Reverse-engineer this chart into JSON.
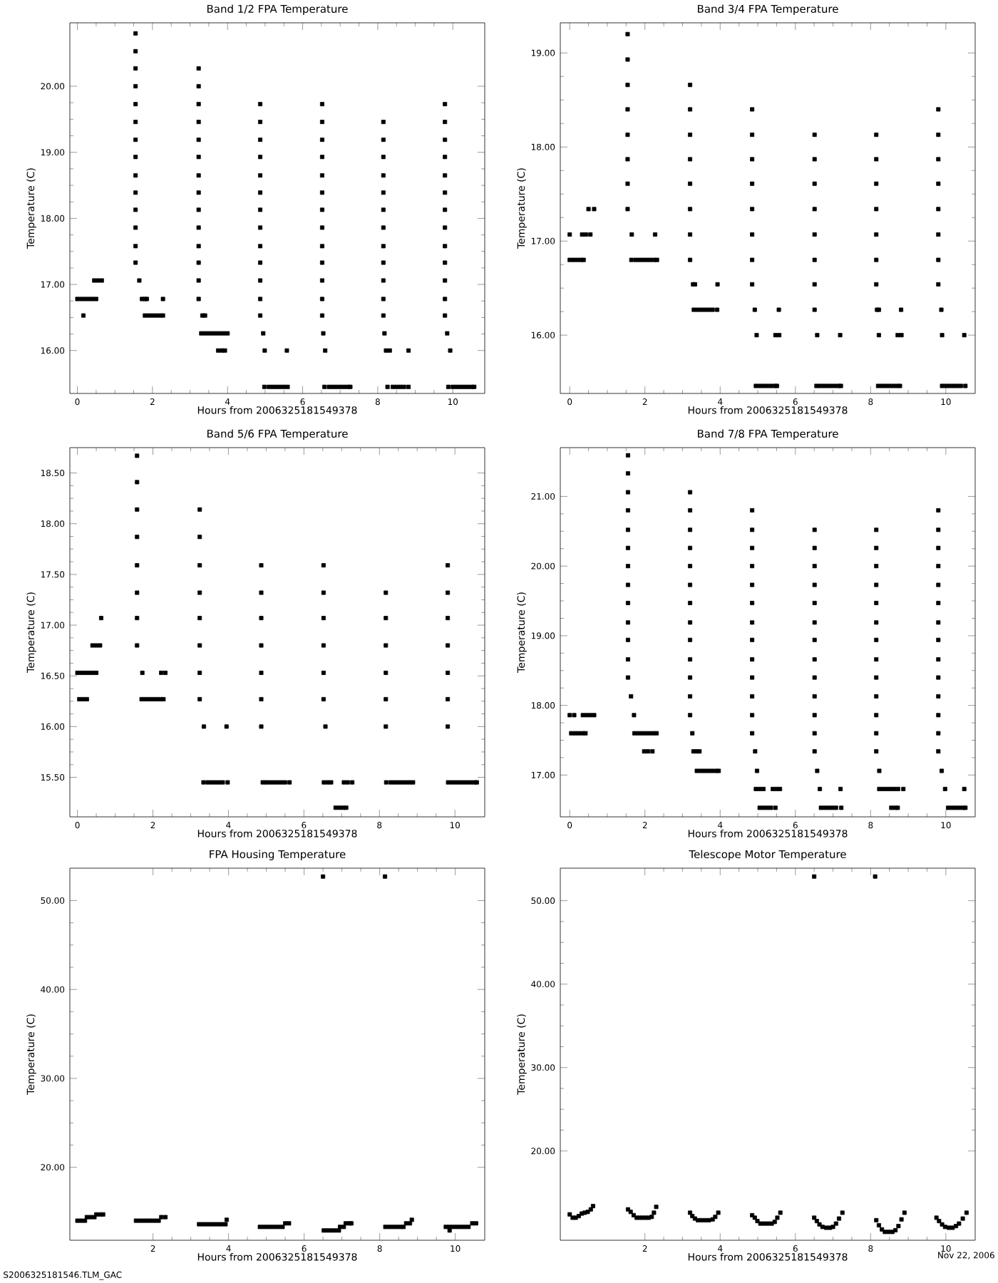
{
  "chart_data": [
    {
      "type": "scatter",
      "title": "Band 1/2 FPA Temperature",
      "xlabel": "Hours from 2006325181549378",
      "ylabel": "Temperature (C)",
      "color": "#000000",
      "marker": "square",
      "xlim": [
        -0.2,
        10.85
      ],
      "ylim": [
        15.35,
        20.96
      ],
      "xticks": [
        0,
        2,
        4,
        6,
        8,
        10
      ],
      "yticks": [
        {
          "value": 16,
          "label": "16.00"
        },
        {
          "value": 17,
          "label": "17.00"
        },
        {
          "value": 18,
          "label": "18.00"
        },
        {
          "value": 19,
          "label": "19.00"
        },
        {
          "value": 20,
          "label": "20.00"
        }
      ],
      "series": [
        {
          "x": [
            0,
            0.1,
            0.2,
            0.3,
            0.4,
            0.5,
            0.16,
            0.45,
            0.55,
            0.65
          ],
          "values": [
            16.78,
            16.78,
            16.78,
            16.78,
            16.78,
            16.78,
            16.53,
            17.06,
            17.06,
            17.06
          ]
        },
        {
          "x": [
            1.55,
            1.55,
            1.55,
            1.55,
            1.55,
            1.55,
            1.55,
            1.55,
            1.55,
            1.55,
            1.55,
            1.55,
            1.55,
            1.55,
            1.65,
            1.72,
            1.8,
            1.85,
            1.8,
            1.9,
            2.0,
            2.1,
            2.2,
            2.28,
            2.28
          ],
          "values": [
            20.8,
            20.53,
            20.27,
            20.0,
            19.73,
            19.46,
            19.19,
            18.93,
            18.65,
            18.39,
            18.13,
            17.86,
            17.58,
            17.33,
            17.06,
            16.78,
            16.78,
            16.78,
            16.53,
            16.53,
            16.53,
            16.53,
            16.53,
            16.53,
            16.78
          ]
        },
        {
          "x": [
            3.23,
            3.23,
            3.23,
            3.23,
            3.23,
            3.23,
            3.23,
            3.23,
            3.23,
            3.23,
            3.23,
            3.23,
            3.23,
            3.23,
            3.33,
            3.4,
            3.3,
            3.4,
            3.5,
            3.6,
            3.7,
            3.8,
            3.9,
            4.0,
            3.75,
            3.85,
            3.93
          ],
          "values": [
            20.27,
            20.0,
            19.73,
            19.46,
            19.19,
            18.93,
            18.65,
            18.39,
            18.13,
            17.86,
            17.58,
            17.33,
            17.06,
            16.78,
            16.53,
            16.53,
            16.26,
            16.26,
            16.26,
            16.26,
            16.26,
            16.26,
            16.26,
            16.26,
            16.0,
            16.0,
            16.0
          ]
        },
        {
          "x": [
            4.87,
            4.87,
            4.87,
            4.87,
            4.87,
            4.87,
            4.87,
            4.87,
            4.87,
            4.87,
            4.87,
            4.87,
            4.87,
            4.95,
            4.99,
            5.58,
            4.98,
            5.1,
            5.2,
            5.3,
            5.4,
            5.5,
            5.6
          ],
          "values": [
            19.73,
            19.46,
            19.19,
            18.93,
            18.65,
            18.39,
            18.13,
            17.86,
            17.58,
            17.33,
            17.06,
            16.78,
            16.53,
            16.26,
            16.0,
            16.0,
            15.45,
            15.45,
            15.45,
            15.45,
            15.45,
            15.45,
            15.45
          ]
        },
        {
          "x": [
            6.52,
            6.52,
            6.52,
            6.52,
            6.52,
            6.52,
            6.52,
            6.52,
            6.52,
            6.52,
            6.52,
            6.52,
            6.52,
            6.55,
            6.6,
            6.58,
            6.7,
            6.8,
            6.9,
            7.0,
            7.1,
            7.2,
            7.27
          ],
          "values": [
            19.73,
            19.46,
            19.19,
            18.93,
            18.65,
            18.39,
            18.13,
            17.86,
            17.58,
            17.33,
            17.06,
            16.78,
            16.53,
            16.26,
            16.0,
            15.45,
            15.45,
            15.45,
            15.45,
            15.45,
            15.45,
            15.45,
            15.45
          ]
        },
        {
          "x": [
            8.15,
            8.15,
            8.15,
            8.15,
            8.15,
            8.15,
            8.15,
            8.15,
            8.15,
            8.15,
            8.15,
            8.15,
            8.18,
            8.22,
            8.32,
            8.82,
            8.26,
            8.4,
            8.5,
            8.6,
            8.7,
            8.82
          ],
          "values": [
            19.46,
            19.19,
            18.93,
            18.65,
            18.39,
            18.13,
            17.86,
            17.58,
            17.33,
            17.06,
            16.78,
            16.53,
            16.26,
            16.0,
            16.0,
            16.0,
            15.45,
            15.45,
            15.45,
            15.45,
            15.45,
            15.45
          ]
        },
        {
          "x": [
            9.79,
            9.79,
            9.79,
            9.79,
            9.79,
            9.79,
            9.79,
            9.79,
            9.79,
            9.79,
            9.79,
            9.79,
            9.79,
            9.85,
            9.93,
            9.88,
            10.0,
            10.1,
            10.2,
            10.3,
            10.4,
            10.5,
            10.57
          ],
          "values": [
            19.73,
            19.46,
            19.19,
            18.93,
            18.65,
            18.39,
            18.13,
            17.86,
            17.58,
            17.33,
            17.06,
            16.78,
            16.53,
            16.26,
            16.0,
            15.45,
            15.45,
            15.45,
            15.45,
            15.45,
            15.45,
            15.45,
            15.45
          ]
        }
      ]
    },
    {
      "type": "scatter",
      "title": "Band 3/4 FPA Temperature",
      "xlabel": "Hours from 2006325181549378",
      "ylabel": "Temperature (C)",
      "color": "#000000",
      "marker": "square",
      "xlim": [
        -0.25,
        10.78
      ],
      "ylim": [
        15.38,
        19.32
      ],
      "xticks": [
        0,
        2,
        4,
        6,
        8,
        10
      ],
      "yticks": [
        {
          "value": 16,
          "label": "16.00"
        },
        {
          "value": 17,
          "label": "17.00"
        },
        {
          "value": 18,
          "label": "18.00"
        },
        {
          "value": 19,
          "label": "19.00"
        }
      ],
      "series": [
        {
          "x": [
            0,
            0,
            0.1,
            0.2,
            0.3,
            0.37,
            0.33,
            0.43,
            0.55,
            0.5,
            0.65
          ],
          "values": [
            17.07,
            16.8,
            16.8,
            16.8,
            16.8,
            16.8,
            17.07,
            17.07,
            17.07,
            17.34,
            17.34
          ]
        },
        {
          "x": [
            1.54,
            1.54,
            1.54,
            1.54,
            1.54,
            1.54,
            1.54,
            1.54,
            1.65,
            1.64,
            1.75,
            1.85,
            1.95,
            2.05,
            2.15,
            2.25,
            2.32,
            2.27
          ],
          "values": [
            19.2,
            18.93,
            18.66,
            18.4,
            18.13,
            17.87,
            17.61,
            17.34,
            17.07,
            16.8,
            16.8,
            16.8,
            16.8,
            16.8,
            16.8,
            16.8,
            16.8,
            17.07
          ]
        },
        {
          "x": [
            3.2,
            3.2,
            3.2,
            3.2,
            3.2,
            3.2,
            3.2,
            3.2,
            3.28,
            3.33,
            3.3,
            3.4,
            3.5,
            3.6,
            3.7,
            3.8,
            3.92,
            3.93
          ],
          "values": [
            18.66,
            18.4,
            18.13,
            17.87,
            17.61,
            17.34,
            17.07,
            16.8,
            16.54,
            16.54,
            16.27,
            16.27,
            16.27,
            16.27,
            16.27,
            16.27,
            16.27,
            16.54
          ]
        },
        {
          "x": [
            4.85,
            4.85,
            4.85,
            4.85,
            4.85,
            4.85,
            4.85,
            4.85,
            4.92,
            4.97,
            5.56,
            5.47,
            5.57,
            4.95,
            5.05,
            5.15,
            5.25,
            5.35,
            5.45,
            5.51
          ],
          "values": [
            18.4,
            18.13,
            17.87,
            17.61,
            17.34,
            17.07,
            16.8,
            16.54,
            16.27,
            16.0,
            16.27,
            16.0,
            16.0,
            15.46,
            15.46,
            15.46,
            15.46,
            15.46,
            15.46,
            15.46
          ]
        },
        {
          "x": [
            6.51,
            6.51,
            6.51,
            6.51,
            6.51,
            6.51,
            6.51,
            6.51,
            6.58,
            7.19,
            6.56,
            6.65,
            6.75,
            6.85,
            6.95,
            7.05,
            7.15,
            7.21
          ],
          "values": [
            18.13,
            17.87,
            17.61,
            17.34,
            17.07,
            16.8,
            16.54,
            16.27,
            16.0,
            16.0,
            15.46,
            15.46,
            15.46,
            15.46,
            15.46,
            15.46,
            15.46,
            15.46
          ]
        },
        {
          "x": [
            8.15,
            8.15,
            8.15,
            8.15,
            8.15,
            8.15,
            8.15,
            8.17,
            8.22,
            8.22,
            8.81,
            8.72,
            8.82,
            8.2,
            8.3,
            8.4,
            8.5,
            8.6,
            8.7,
            8.78
          ],
          "values": [
            18.13,
            17.87,
            17.61,
            17.34,
            17.07,
            16.8,
            16.54,
            16.27,
            16.27,
            16.0,
            16.27,
            16.0,
            16.0,
            15.46,
            15.46,
            15.46,
            15.46,
            15.46,
            15.46,
            15.46
          ]
        },
        {
          "x": [
            9.8,
            9.8,
            9.8,
            9.8,
            9.8,
            9.8,
            9.8,
            9.8,
            9.88,
            9.9,
            10.49,
            9.9,
            10.0,
            10.1,
            10.2,
            10.3,
            10.4,
            10.52
          ],
          "values": [
            18.4,
            18.13,
            17.87,
            17.61,
            17.34,
            17.07,
            16.8,
            16.54,
            16.27,
            16.0,
            16.0,
            15.46,
            15.46,
            15.46,
            15.46,
            15.46,
            15.46,
            15.46
          ]
        }
      ]
    },
    {
      "type": "scatter",
      "title": "Band 5/6 FPA Temperature",
      "xlabel": "Hours from 2006325181549378",
      "ylabel": "Temperature (C)",
      "color": "#000000",
      "marker": "square",
      "xlim": [
        -0.2,
        10.79
      ],
      "ylim": [
        15.11,
        18.75
      ],
      "xticks": [
        0,
        2,
        4,
        6,
        8,
        10
      ],
      "yticks": [
        {
          "value": 15.5,
          "label": "15.50"
        },
        {
          "value": 16,
          "label": "16.00"
        },
        {
          "value": 16.5,
          "label": "16.50"
        },
        {
          "value": 17,
          "label": "17.00"
        },
        {
          "value": 17.5,
          "label": "17.50"
        },
        {
          "value": 18,
          "label": "18.00"
        },
        {
          "value": 18.5,
          "label": "18.50"
        }
      ],
      "series": [
        {
          "x": [
            0,
            0.1,
            0.2,
            0.3,
            0.4,
            0.5,
            0.05,
            0.15,
            0.25,
            0.4,
            0.5,
            0.6,
            0.63
          ],
          "values": [
            16.53,
            16.53,
            16.53,
            16.53,
            16.53,
            16.53,
            16.27,
            16.27,
            16.27,
            16.8,
            16.8,
            16.8,
            17.07
          ]
        },
        {
          "x": [
            1.58,
            1.58,
            1.58,
            1.58,
            1.58,
            1.58,
            1.58,
            1.58,
            1.72,
            1.7,
            1.8,
            1.9,
            2.0,
            2.1,
            2.2,
            2.28,
            2.22,
            2.33
          ],
          "values": [
            18.67,
            18.41,
            18.14,
            17.87,
            17.59,
            17.32,
            17.07,
            16.8,
            16.53,
            16.27,
            16.27,
            16.27,
            16.27,
            16.27,
            16.27,
            16.27,
            16.53,
            16.53
          ]
        },
        {
          "x": [
            3.24,
            3.24,
            3.24,
            3.24,
            3.24,
            3.24,
            3.24,
            3.24,
            3.35,
            3.34,
            3.45,
            3.55,
            3.65,
            3.75,
            3.85,
            3.98,
            3.95
          ],
          "values": [
            18.14,
            17.87,
            17.59,
            17.32,
            17.07,
            16.8,
            16.53,
            16.27,
            16.0,
            15.45,
            15.45,
            15.45,
            15.45,
            15.45,
            15.45,
            15.45,
            16.0
          ]
        },
        {
          "x": [
            4.87,
            4.87,
            4.87,
            4.87,
            4.87,
            4.87,
            4.87,
            4.91,
            5.0,
            5.1,
            5.2,
            5.3,
            5.4,
            5.5,
            5.62
          ],
          "values": [
            17.59,
            17.32,
            17.07,
            16.8,
            16.53,
            16.27,
            16.0,
            15.45,
            15.45,
            15.45,
            15.45,
            15.45,
            15.45,
            15.45,
            15.45
          ]
        },
        {
          "x": [
            6.52,
            6.52,
            6.52,
            6.52,
            6.52,
            6.52,
            6.57,
            6.53,
            6.63,
            6.72,
            7.06,
            7.16,
            7.28,
            6.84,
            6.94,
            7.04,
            7.12
          ],
          "values": [
            17.59,
            17.32,
            17.07,
            16.8,
            16.53,
            16.27,
            16.0,
            15.45,
            15.45,
            15.45,
            15.45,
            15.45,
            15.45,
            15.2,
            15.2,
            15.2,
            15.2
          ]
        },
        {
          "x": [
            8.17,
            8.17,
            8.17,
            8.17,
            8.17,
            8.17,
            8.18,
            8.3,
            8.4,
            8.5,
            8.6,
            8.7,
            8.8,
            8.89
          ],
          "values": [
            17.32,
            17.07,
            16.8,
            16.53,
            16.27,
            16.0,
            15.45,
            15.45,
            15.45,
            15.45,
            15.45,
            15.45,
            15.45,
            15.45
          ]
        },
        {
          "x": [
            9.81,
            9.81,
            9.81,
            9.81,
            9.81,
            9.81,
            9.81,
            9.82,
            9.92,
            10.02,
            10.12,
            10.22,
            10.32,
            10.42,
            10.52,
            10.58
          ],
          "values": [
            17.59,
            17.32,
            17.07,
            16.8,
            16.53,
            16.27,
            16.0,
            15.45,
            15.45,
            15.45,
            15.45,
            15.45,
            15.45,
            15.45,
            15.45,
            15.45
          ]
        }
      ]
    },
    {
      "type": "scatter",
      "title": "Band 7/8 FPA Temperature",
      "xlabel": "Hours from 2006325181549378",
      "ylabel": "Temperature (C)",
      "color": "#000000",
      "marker": "square",
      "xlim": [
        -0.25,
        10.78
      ],
      "ylim": [
        16.4,
        21.7
      ],
      "xticks": [
        0,
        2,
        4,
        6,
        8,
        10
      ],
      "yticks": [
        {
          "value": 17,
          "label": "17.00"
        },
        {
          "value": 18,
          "label": "18.00"
        },
        {
          "value": 19,
          "label": "19.00"
        },
        {
          "value": 20,
          "label": "20.00"
        },
        {
          "value": 21,
          "label": "21.00"
        }
      ],
      "series": [
        {
          "x": [
            0,
            0.12,
            0.35,
            0.45,
            0.55,
            0.65,
            0.04,
            0.14,
            0.24,
            0.34,
            0.42
          ],
          "values": [
            17.86,
            17.86,
            17.86,
            17.86,
            17.86,
            17.86,
            17.6,
            17.6,
            17.6,
            17.6,
            17.6
          ]
        },
        {
          "x": [
            1.55,
            1.55,
            1.55,
            1.55,
            1.55,
            1.55,
            1.55,
            1.55,
            1.55,
            1.55,
            1.55,
            1.55,
            1.55,
            1.63,
            1.71,
            1.72,
            1.82,
            1.92,
            2.02,
            2.12,
            2.22,
            2.31,
            1.98,
            2.08,
            2.2
          ],
          "values": [
            21.59,
            21.33,
            21.06,
            20.8,
            20.52,
            20.26,
            20.0,
            19.73,
            19.47,
            19.19,
            18.94,
            18.66,
            18.4,
            18.13,
            17.86,
            17.6,
            17.6,
            17.6,
            17.6,
            17.6,
            17.6,
            17.6,
            17.34,
            17.34,
            17.34
          ]
        },
        {
          "x": [
            3.2,
            3.2,
            3.2,
            3.2,
            3.2,
            3.2,
            3.2,
            3.2,
            3.2,
            3.2,
            3.2,
            3.2,
            3.2,
            3.26,
            3.29,
            3.38,
            3.45,
            3.38,
            3.48,
            3.58,
            3.68,
            3.78,
            3.88,
            3.96
          ],
          "values": [
            21.06,
            20.8,
            20.52,
            20.26,
            20.0,
            19.73,
            19.47,
            19.19,
            18.94,
            18.66,
            18.4,
            18.13,
            17.86,
            17.6,
            17.34,
            17.34,
            17.34,
            17.06,
            17.06,
            17.06,
            17.06,
            17.06,
            17.06,
            17.06
          ]
        },
        {
          "x": [
            4.85,
            4.85,
            4.85,
            4.85,
            4.85,
            4.85,
            4.85,
            4.85,
            4.85,
            4.85,
            4.85,
            4.85,
            4.85,
            4.93,
            4.98,
            4.95,
            5.05,
            5.15,
            5.4,
            5.5,
            5.59,
            5.05,
            5.15,
            5.25,
            5.35,
            5.47
          ],
          "values": [
            20.8,
            20.52,
            20.26,
            20.0,
            19.73,
            19.47,
            19.19,
            18.94,
            18.66,
            18.4,
            18.13,
            17.86,
            17.6,
            17.34,
            17.06,
            16.8,
            16.8,
            16.8,
            16.8,
            16.8,
            16.8,
            16.53,
            16.53,
            16.53,
            16.53,
            16.53
          ]
        },
        {
          "x": [
            6.51,
            6.51,
            6.51,
            6.51,
            6.51,
            6.51,
            6.51,
            6.51,
            6.51,
            6.51,
            6.51,
            6.51,
            6.51,
            6.58,
            6.65,
            7.2,
            6.68,
            6.78,
            6.88,
            6.98,
            7.08,
            7.22
          ],
          "values": [
            20.52,
            20.26,
            20.0,
            19.73,
            19.47,
            19.19,
            18.94,
            18.66,
            18.4,
            18.13,
            17.86,
            17.6,
            17.34,
            17.06,
            16.8,
            16.8,
            16.53,
            16.53,
            16.53,
            16.53,
            16.53,
            16.53
          ]
        },
        {
          "x": [
            8.15,
            8.15,
            8.15,
            8.15,
            8.15,
            8.15,
            8.15,
            8.15,
            8.15,
            8.15,
            8.15,
            8.15,
            8.15,
            8.23,
            8.23,
            8.33,
            8.43,
            8.53,
            8.63,
            8.73,
            8.87,
            8.55,
            8.65,
            8.72
          ],
          "values": [
            20.52,
            20.26,
            20.0,
            19.73,
            19.47,
            19.19,
            18.94,
            18.66,
            18.4,
            18.13,
            17.86,
            17.6,
            17.34,
            17.06,
            16.8,
            16.8,
            16.8,
            16.8,
            16.8,
            16.8,
            16.8,
            16.53,
            16.53,
            16.53
          ]
        },
        {
          "x": [
            9.8,
            9.8,
            9.8,
            9.8,
            9.8,
            9.8,
            9.8,
            9.8,
            9.8,
            9.8,
            9.8,
            9.8,
            9.8,
            9.8,
            9.89,
            9.98,
            10.49,
            10.06,
            10.16,
            10.26,
            10.36,
            10.46,
            10.52
          ],
          "values": [
            20.8,
            20.52,
            20.26,
            20.0,
            19.73,
            19.47,
            19.19,
            18.94,
            18.66,
            18.4,
            18.13,
            17.86,
            17.6,
            17.34,
            17.06,
            16.8,
            16.8,
            16.53,
            16.53,
            16.53,
            16.53,
            16.53,
            16.53
          ]
        }
      ]
    },
    {
      "type": "scatter",
      "title": "FPA Housing Temperature",
      "xlabel": "Hours from 2006325181549378",
      "ylabel": "Temperature (C)",
      "color": "#000000",
      "marker": "square",
      "xlim": [
        -0.2,
        10.78
      ],
      "ylim": [
        11.8,
        53.64
      ],
      "xticks": [
        2,
        4,
        6,
        8,
        10
      ],
      "yticks": [
        {
          "value": 20,
          "label": "20.00"
        },
        {
          "value": 30,
          "label": "30.00"
        },
        {
          "value": 40,
          "label": "40.00"
        },
        {
          "value": 50,
          "label": "50.00"
        }
      ],
      "annotations": [
        "S2006325181546.TLM_GAC"
      ],
      "series": [
        {
          "x": [
            0,
            0.1,
            0.2,
            0.25,
            0.35,
            0.45,
            0.5,
            0.6,
            0.68
          ],
          "values": [
            14.0,
            14.0,
            14.0,
            14.4,
            14.4,
            14.4,
            14.7,
            14.7,
            14.7
          ]
        },
        {
          "x": [
            1.55,
            1.65,
            1.75,
            1.85,
            1.95,
            2.05,
            2.15,
            2.22,
            2.33
          ],
          "values": [
            14.0,
            14.0,
            14.0,
            14.0,
            14.0,
            14.0,
            14.0,
            14.4,
            14.4
          ]
        },
        {
          "x": [
            3.22,
            3.32,
            3.42,
            3.52,
            3.62,
            3.72,
            3.82,
            3.92,
            3.95
          ],
          "values": [
            13.6,
            13.6,
            13.6,
            13.6,
            13.6,
            13.6,
            13.6,
            13.6,
            14.1
          ]
        },
        {
          "x": [
            4.83,
            4.93,
            5.03,
            5.13,
            5.23,
            5.33,
            5.43,
            5.5,
            5.6
          ],
          "values": [
            13.3,
            13.3,
            13.3,
            13.3,
            13.3,
            13.3,
            13.3,
            13.7,
            13.7
          ]
        },
        {
          "x": [
            6.52,
            6.62,
            6.72,
            6.82,
            6.92,
            6.95,
            7.05,
            7.1,
            7.2,
            7.25,
            6.5
          ],
          "values": [
            12.9,
            12.9,
            12.9,
            12.9,
            12.9,
            13.3,
            13.3,
            13.7,
            13.7,
            13.7,
            52.7
          ]
        },
        {
          "x": [
            8.15,
            8.25,
            8.35,
            8.45,
            8.55,
            8.63,
            8.7,
            8.8,
            8.85,
            8.14
          ],
          "values": [
            13.3,
            13.3,
            13.3,
            13.3,
            13.3,
            13.3,
            13.7,
            13.7,
            14.1,
            52.7
          ]
        },
        {
          "x": [
            9.75,
            9.85,
            9.95,
            10.05,
            10.15,
            10.25,
            10.35,
            9.85,
            10.45,
            10.55
          ],
          "values": [
            13.3,
            13.3,
            13.3,
            13.3,
            13.3,
            13.3,
            13.3,
            12.9,
            13.7,
            13.7
          ]
        }
      ]
    },
    {
      "type": "scatter",
      "title": "Telescope Motor Temperature",
      "xlabel": "Hours from 2006325181549378",
      "ylabel": "Temperature (C)",
      "color": "#000000",
      "marker": "square",
      "xlim": [
        -0.25,
        10.78
      ],
      "ylim": [
        9.3,
        53.9
      ],
      "xticks": [
        2,
        4,
        6,
        8,
        10
      ],
      "yticks": [
        {
          "value": 20,
          "label": "20.00"
        },
        {
          "value": 30,
          "label": "30.00"
        },
        {
          "value": 40,
          "label": "40.00"
        },
        {
          "value": 50,
          "label": "50.00"
        }
      ],
      "annotations": [
        "Nov 22, 2006"
      ],
      "series": [
        {
          "x": [
            0,
            0.08,
            0.16,
            0.24,
            0.32,
            0.4,
            0.48,
            0.56,
            0.62
          ],
          "values": [
            12.4,
            12.0,
            12.0,
            12.2,
            12.5,
            12.6,
            12.7,
            13.0,
            13.4
          ]
        },
        {
          "x": [
            1.55,
            1.62,
            1.7,
            1.78,
            1.86,
            1.94,
            2.02,
            2.1,
            2.18,
            2.24,
            2.3
          ],
          "values": [
            13.0,
            12.7,
            12.3,
            12.0,
            12.0,
            12.0,
            12.0,
            12.0,
            12.1,
            12.6,
            13.3
          ]
        },
        {
          "x": [
            3.2,
            3.26,
            3.33,
            3.41,
            3.5,
            3.6,
            3.7,
            3.8,
            3.87,
            3.95
          ],
          "values": [
            12.6,
            12.2,
            11.9,
            11.7,
            11.7,
            11.7,
            11.7,
            11.8,
            12.1,
            12.6
          ]
        },
        {
          "x": [
            4.85,
            4.92,
            4.99,
            5.07,
            5.17,
            5.27,
            5.37,
            5.45,
            5.52,
            5.6
          ],
          "values": [
            12.3,
            12.0,
            11.6,
            11.3,
            11.3,
            11.3,
            11.3,
            11.5,
            12.0,
            12.6
          ]
        },
        {
          "x": [
            6.5,
            6.57,
            6.64,
            6.72,
            6.82,
            6.92,
            7.0,
            7.08,
            7.16,
            7.25
          ],
          "values": [
            12.0,
            11.6,
            11.2,
            10.9,
            10.8,
            10.8,
            10.9,
            11.3,
            11.9,
            12.6
          ]
        },
        {
          "x": [
            8.15,
            8.22,
            8.3,
            8.38,
            8.48,
            8.58,
            8.66,
            8.74,
            8.82,
            8.9
          ],
          "values": [
            11.7,
            11.1,
            10.6,
            10.3,
            10.3,
            10.3,
            10.5,
            11.0,
            11.8,
            12.6
          ]
        },
        {
          "x": [
            9.75,
            9.82,
            9.9,
            9.98,
            10.08,
            10.18,
            10.27,
            10.35,
            10.45,
            10.55
          ],
          "values": [
            12.0,
            11.6,
            11.2,
            10.9,
            10.8,
            10.8,
            11.0,
            11.3,
            11.9,
            12.6
          ]
        },
        {
          "x": [
            6.5,
            8.12
          ],
          "values": [
            52.9,
            52.9
          ]
        }
      ]
    }
  ]
}
